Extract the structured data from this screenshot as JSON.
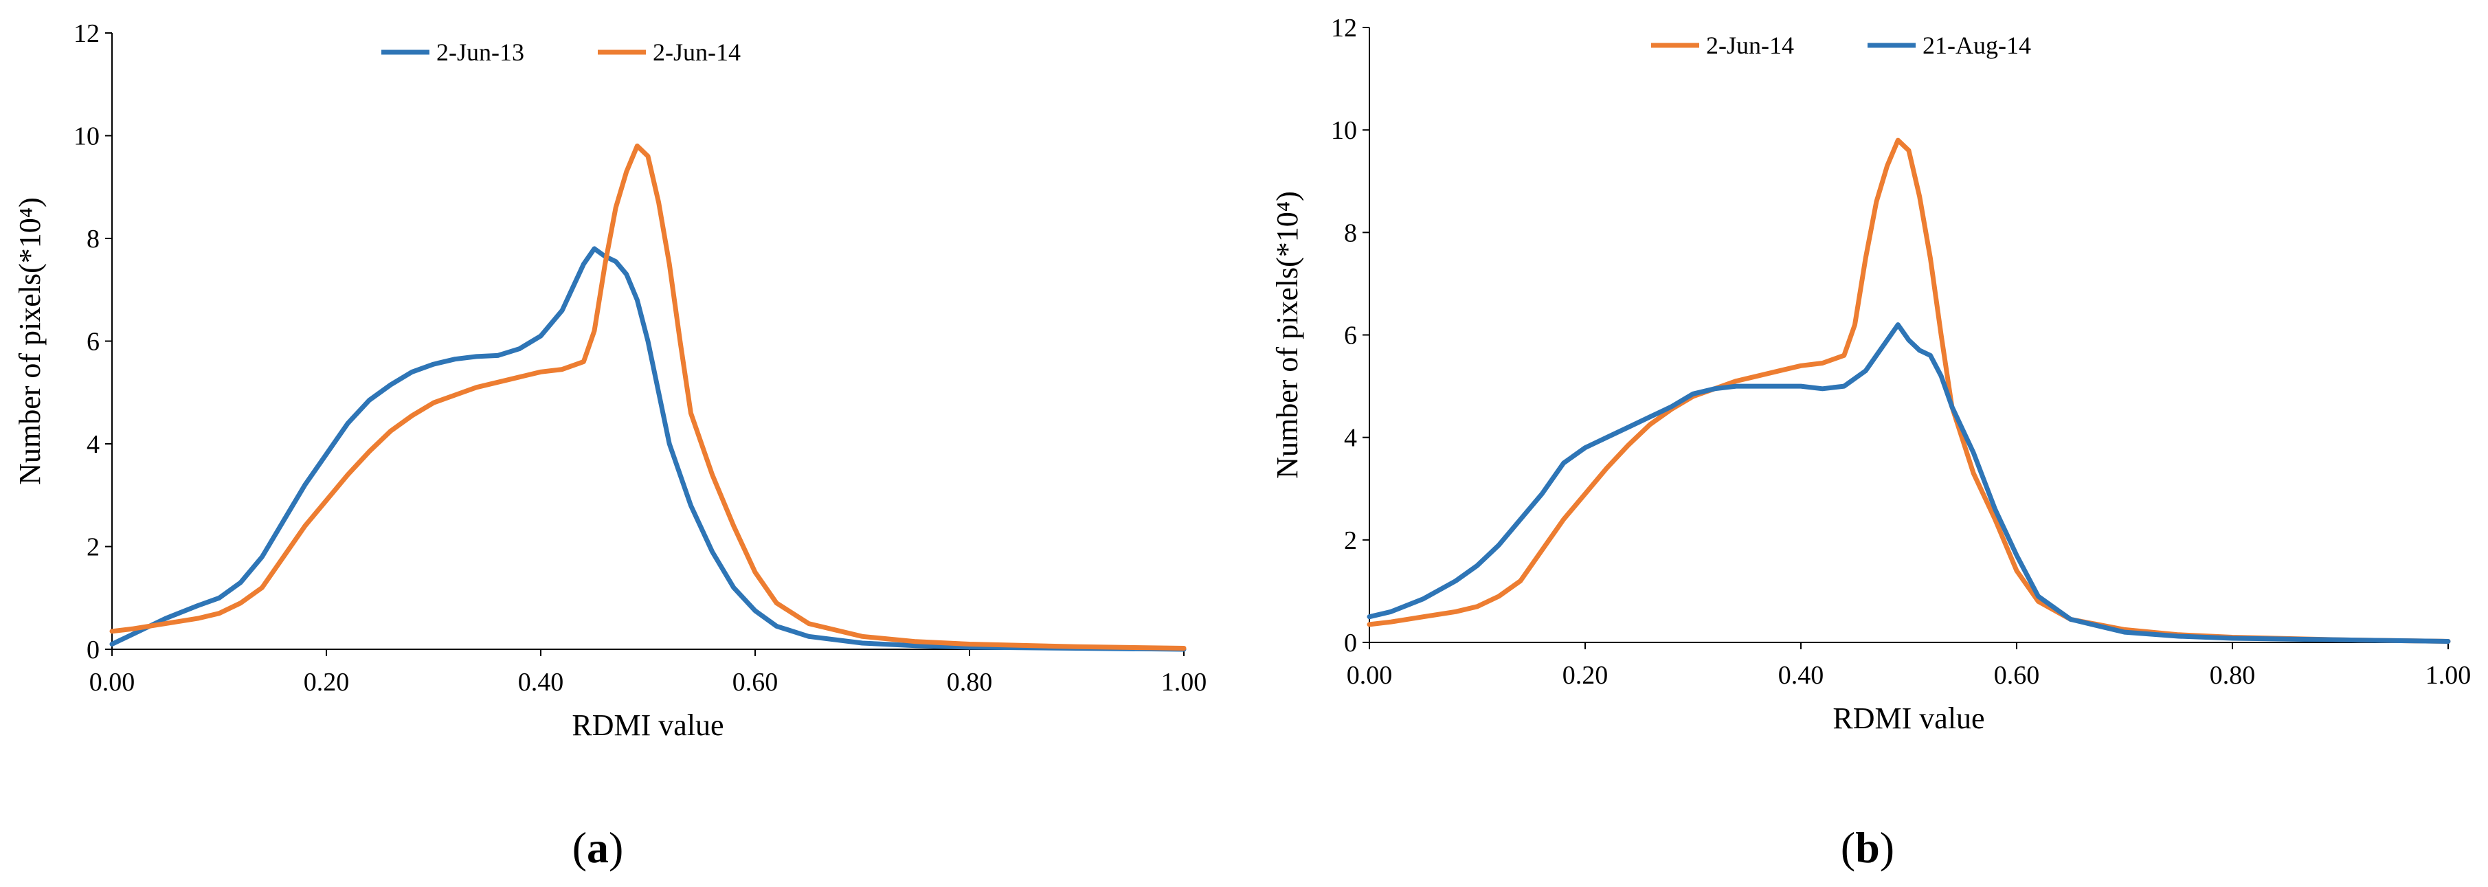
{
  "chart_data": [
    {
      "type": "line",
      "panel_label": "(a)",
      "panel_letter": "a",
      "xlabel": "RDMI value",
      "ylabel": "Number of pixels(*10⁴)",
      "xlim": [
        0,
        1
      ],
      "ylim": [
        0,
        12
      ],
      "xticks": [
        0,
        0.2,
        0.4,
        0.6,
        0.8,
        1.0
      ],
      "xtick_labels": [
        "0.00",
        "0.20",
        "0.40",
        "0.60",
        "0.80",
        "1.00"
      ],
      "yticks": [
        0,
        2,
        4,
        6,
        8,
        10,
        12
      ],
      "ytick_labels": [
        "0",
        "2",
        "4",
        "6",
        "8",
        "10",
        "12"
      ],
      "legend_position": "top-center",
      "grid": false,
      "series": [
        {
          "name": "2-Jun-13",
          "color": "#2E75B6",
          "x": [
            0.0,
            0.02,
            0.05,
            0.08,
            0.1,
            0.12,
            0.14,
            0.16,
            0.18,
            0.2,
            0.22,
            0.24,
            0.26,
            0.28,
            0.3,
            0.32,
            0.34,
            0.36,
            0.38,
            0.4,
            0.42,
            0.44,
            0.45,
            0.46,
            0.47,
            0.48,
            0.49,
            0.5,
            0.51,
            0.52,
            0.54,
            0.56,
            0.58,
            0.6,
            0.62,
            0.65,
            0.7,
            0.75,
            0.8,
            0.9,
            1.0
          ],
          "y": [
            0.1,
            0.3,
            0.6,
            0.85,
            1.0,
            1.3,
            1.8,
            2.5,
            3.2,
            3.8,
            4.4,
            4.85,
            5.15,
            5.4,
            5.55,
            5.65,
            5.7,
            5.72,
            5.85,
            6.1,
            6.6,
            7.5,
            7.8,
            7.65,
            7.55,
            7.3,
            6.8,
            6.0,
            5.0,
            4.0,
            2.8,
            1.9,
            1.2,
            0.75,
            0.45,
            0.25,
            0.12,
            0.07,
            0.04,
            0.02,
            0.0
          ]
        },
        {
          "name": "2-Jun-14",
          "color": "#ED7D31",
          "x": [
            0.0,
            0.02,
            0.05,
            0.08,
            0.1,
            0.12,
            0.14,
            0.16,
            0.18,
            0.2,
            0.22,
            0.24,
            0.26,
            0.28,
            0.3,
            0.32,
            0.34,
            0.36,
            0.38,
            0.4,
            0.42,
            0.44,
            0.45,
            0.46,
            0.47,
            0.48,
            0.49,
            0.5,
            0.51,
            0.52,
            0.53,
            0.54,
            0.56,
            0.58,
            0.6,
            0.62,
            0.65,
            0.7,
            0.75,
            0.8,
            0.9,
            1.0
          ],
          "y": [
            0.35,
            0.4,
            0.5,
            0.6,
            0.7,
            0.9,
            1.2,
            1.8,
            2.4,
            2.9,
            3.4,
            3.85,
            4.25,
            4.55,
            4.8,
            4.95,
            5.1,
            5.2,
            5.3,
            5.4,
            5.45,
            5.6,
            6.2,
            7.5,
            8.6,
            9.3,
            9.8,
            9.6,
            8.7,
            7.5,
            6.0,
            4.6,
            3.4,
            2.4,
            1.5,
            0.9,
            0.5,
            0.25,
            0.15,
            0.1,
            0.05,
            0.02
          ]
        }
      ]
    },
    {
      "type": "line",
      "panel_label": "(b)",
      "panel_letter": "b",
      "xlabel": "RDMI value",
      "ylabel": "Number of pixels(*10⁴)",
      "xlim": [
        0,
        1
      ],
      "ylim": [
        0,
        12
      ],
      "xticks": [
        0,
        0.2,
        0.4,
        0.6,
        0.8,
        1.0
      ],
      "xtick_labels": [
        "0.00",
        "0.20",
        "0.40",
        "0.60",
        "0.80",
        "1.00"
      ],
      "yticks": [
        0,
        2,
        4,
        6,
        8,
        10,
        12
      ],
      "ytick_labels": [
        "0",
        "2",
        "4",
        "6",
        "8",
        "10",
        "12"
      ],
      "legend_position": "top-center",
      "grid": false,
      "series": [
        {
          "name": "2-Jun-14",
          "color": "#ED7D31",
          "x": [
            0.0,
            0.02,
            0.05,
            0.08,
            0.1,
            0.12,
            0.14,
            0.16,
            0.18,
            0.2,
            0.22,
            0.24,
            0.26,
            0.28,
            0.3,
            0.32,
            0.34,
            0.36,
            0.38,
            0.4,
            0.42,
            0.44,
            0.45,
            0.46,
            0.47,
            0.48,
            0.49,
            0.5,
            0.51,
            0.52,
            0.53,
            0.54,
            0.56,
            0.58,
            0.6,
            0.62,
            0.65,
            0.7,
            0.75,
            0.8,
            0.9,
            1.0
          ],
          "y": [
            0.35,
            0.4,
            0.5,
            0.6,
            0.7,
            0.9,
            1.2,
            1.8,
            2.4,
            2.9,
            3.4,
            3.85,
            4.25,
            4.55,
            4.8,
            4.95,
            5.1,
            5.2,
            5.3,
            5.4,
            5.45,
            5.6,
            6.2,
            7.5,
            8.6,
            9.3,
            9.8,
            9.6,
            8.7,
            7.5,
            6.0,
            4.6,
            3.3,
            2.4,
            1.4,
            0.8,
            0.45,
            0.25,
            0.15,
            0.1,
            0.05,
            0.02
          ]
        },
        {
          "name": "21-Aug-14",
          "color": "#2E75B6",
          "x": [
            0.0,
            0.02,
            0.05,
            0.08,
            0.1,
            0.12,
            0.14,
            0.16,
            0.18,
            0.2,
            0.22,
            0.24,
            0.26,
            0.28,
            0.3,
            0.32,
            0.34,
            0.36,
            0.38,
            0.4,
            0.42,
            0.44,
            0.46,
            0.48,
            0.49,
            0.5,
            0.51,
            0.52,
            0.53,
            0.54,
            0.56,
            0.58,
            0.6,
            0.62,
            0.65,
            0.7,
            0.75,
            0.8,
            0.9,
            1.0
          ],
          "y": [
            0.5,
            0.6,
            0.85,
            1.2,
            1.5,
            1.9,
            2.4,
            2.9,
            3.5,
            3.8,
            4.0,
            4.2,
            4.4,
            4.6,
            4.85,
            4.95,
            5.0,
            5.0,
            5.0,
            5.0,
            4.95,
            5.0,
            5.3,
            5.9,
            6.2,
            5.9,
            5.7,
            5.6,
            5.2,
            4.6,
            3.7,
            2.6,
            1.7,
            0.9,
            0.45,
            0.2,
            0.12,
            0.08,
            0.05,
            0.02
          ]
        }
      ]
    }
  ]
}
